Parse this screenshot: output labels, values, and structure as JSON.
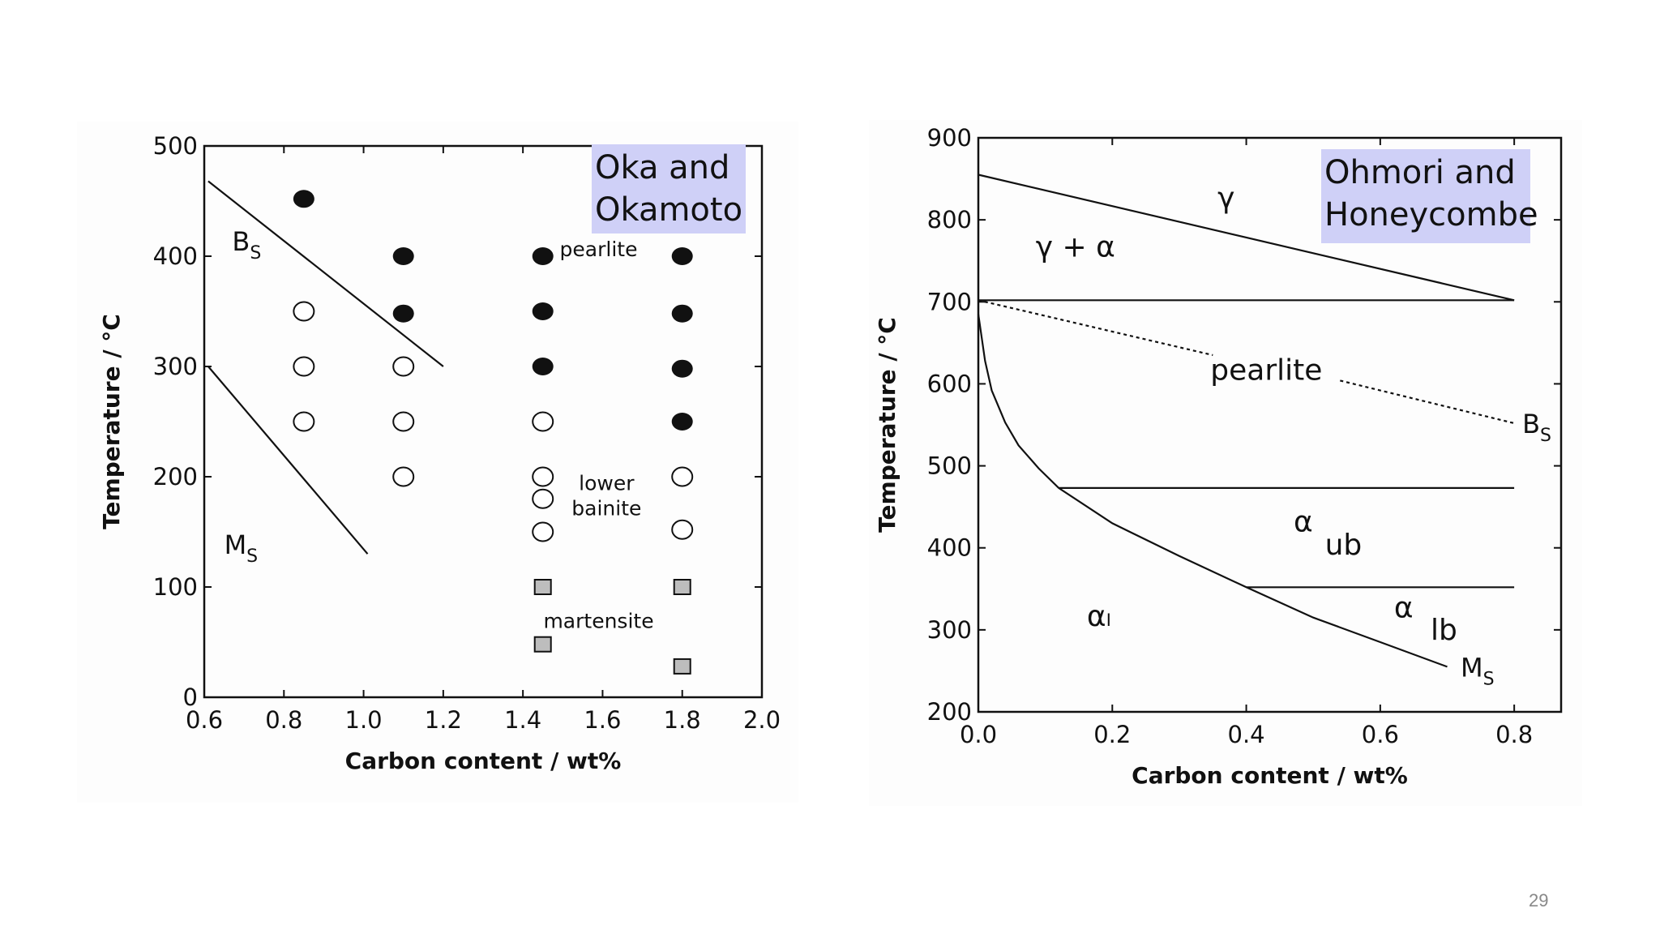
{
  "page_number": "29",
  "colors": {
    "label_box": "#cfd0f7",
    "ink": "#111111",
    "marker_gray": "#bdbdbd"
  },
  "chart_data": [
    {
      "type": "scatter",
      "xlabel": "Carbon content / wt%",
      "ylabel": "Temperature / °C",
      "xlim": [
        0.6,
        2.0
      ],
      "ylim": [
        0,
        500
      ],
      "xticks": [
        "0.6",
        "0.8",
        "1.0",
        "1.2",
        "1.4",
        "1.6",
        "1.8",
        "2.0"
      ],
      "yticks": [
        "0",
        "100",
        "200",
        "300",
        "400",
        "500"
      ],
      "title_box": [
        "Oka and",
        "Okamoto"
      ],
      "series": [
        {
          "name": "pearlite",
          "marker": "filled-circle",
          "points": [
            [
              0.85,
              452
            ],
            [
              1.1,
              400
            ],
            [
              1.1,
              348
            ],
            [
              1.45,
              400
            ],
            [
              1.45,
              350
            ],
            [
              1.45,
              300
            ],
            [
              1.8,
              400
            ],
            [
              1.8,
              348
            ],
            [
              1.8,
              298
            ],
            [
              1.8,
              250
            ]
          ]
        },
        {
          "name": "lower bainite",
          "marker": "open-circle",
          "points": [
            [
              0.85,
              350
            ],
            [
              0.85,
              300
            ],
            [
              0.85,
              250
            ],
            [
              1.1,
              300
            ],
            [
              1.1,
              250
            ],
            [
              1.1,
              200
            ],
            [
              1.45,
              250
            ],
            [
              1.45,
              200
            ],
            [
              1.45,
              180
            ],
            [
              1.45,
              150
            ],
            [
              1.8,
              200
            ],
            [
              1.8,
              152
            ]
          ]
        },
        {
          "name": "martensite",
          "marker": "hatched-square",
          "points": [
            [
              1.45,
              100
            ],
            [
              1.45,
              48
            ],
            [
              1.8,
              100
            ],
            [
              1.8,
              28
            ]
          ]
        }
      ],
      "lines": [
        {
          "name": "Bs",
          "points": [
            [
              0.61,
              468
            ],
            [
              1.2,
              300
            ]
          ]
        },
        {
          "name": "Ms",
          "points": [
            [
              0.61,
              300
            ],
            [
              1.01,
              130
            ]
          ]
        }
      ],
      "annotations": [
        {
          "text": "pearlite",
          "x": 1.59,
          "y": 400
        },
        {
          "text": "lower",
          "x": 1.61,
          "y": 188
        },
        {
          "text": "bainite",
          "x": 1.61,
          "y": 165
        },
        {
          "text": "martensite",
          "x": 1.59,
          "y": 63
        }
      ],
      "curve_labels": [
        {
          "main": "B",
          "sub": "S",
          "x": 0.67,
          "y": 405
        },
        {
          "main": "M",
          "sub": "S",
          "x": 0.65,
          "y": 130
        }
      ]
    },
    {
      "type": "line",
      "xlabel": "Carbon content / wt%",
      "ylabel": "Temperature / °C",
      "xlim": [
        0.0,
        0.87
      ],
      "ylim": [
        200,
        900
      ],
      "xticks": [
        "0.0",
        "0.2",
        "0.4",
        "0.6",
        "0.8"
      ],
      "yticks": [
        "200",
        "300",
        "400",
        "500",
        "600",
        "700",
        "800",
        "900"
      ],
      "title_box": [
        "Ohmori and",
        "Honeycombe"
      ],
      "lines": [
        {
          "name": "gamma boundary",
          "style": "solid",
          "points": [
            [
              0.0,
              855
            ],
            [
              0.8,
              702
            ]
          ]
        },
        {
          "name": "A1",
          "style": "solid",
          "points": [
            [
              0.0,
              702
            ],
            [
              0.8,
              702
            ]
          ]
        },
        {
          "name": "Bs upper",
          "style": "dotted",
          "points": [
            [
              0.0,
              702
            ],
            [
              0.35,
              635
            ]
          ]
        },
        {
          "name": "Bs lower",
          "style": "dotted",
          "points": [
            [
              0.54,
              604
            ],
            [
              0.8,
              552
            ]
          ]
        },
        {
          "name": "upper bainite",
          "style": "solid",
          "points": [
            [
              0.12,
              473
            ],
            [
              0.8,
              473
            ]
          ]
        },
        {
          "name": "lower bainite",
          "style": "solid",
          "points": [
            [
              0.4,
              352
            ],
            [
              0.8,
              352
            ]
          ]
        },
        {
          "name": "Ms",
          "style": "solid",
          "points": [
            [
              0.0,
              685
            ],
            [
              0.01,
              628
            ],
            [
              0.02,
              592
            ],
            [
              0.04,
              553
            ],
            [
              0.06,
              525
            ],
            [
              0.09,
              497
            ],
            [
              0.12,
              473
            ],
            [
              0.2,
              430
            ],
            [
              0.3,
              390
            ],
            [
              0.4,
              352
            ],
            [
              0.5,
              315
            ],
            [
              0.6,
              285
            ],
            [
              0.7,
              255
            ]
          ]
        }
      ],
      "annotations": [
        {
          "text": "γ",
          "x": 0.37,
          "y": 815,
          "size": "big"
        },
        {
          "text": "γ + α",
          "x": 0.145,
          "y": 755,
          "size": "big"
        },
        {
          "text": "pearlite",
          "x": 0.43,
          "y": 605,
          "size": "big"
        },
        {
          "text": "α",
          "x": 0.485,
          "y": 420,
          "size": "big"
        },
        {
          "text": "ub",
          "x": 0.545,
          "y": 392,
          "size": "big"
        },
        {
          "text": "α",
          "x": 0.635,
          "y": 315,
          "size": "big"
        },
        {
          "text": "lb",
          "x": 0.695,
          "y": 288,
          "size": "big"
        },
        {
          "text": "αₗ",
          "x": 0.18,
          "y": 305,
          "size": "big"
        }
      ],
      "curve_labels": [
        {
          "main": "B",
          "sub": "S",
          "x": 0.812,
          "y": 540
        },
        {
          "main": "M",
          "sub": "S",
          "x": 0.72,
          "y": 243
        }
      ]
    }
  ]
}
